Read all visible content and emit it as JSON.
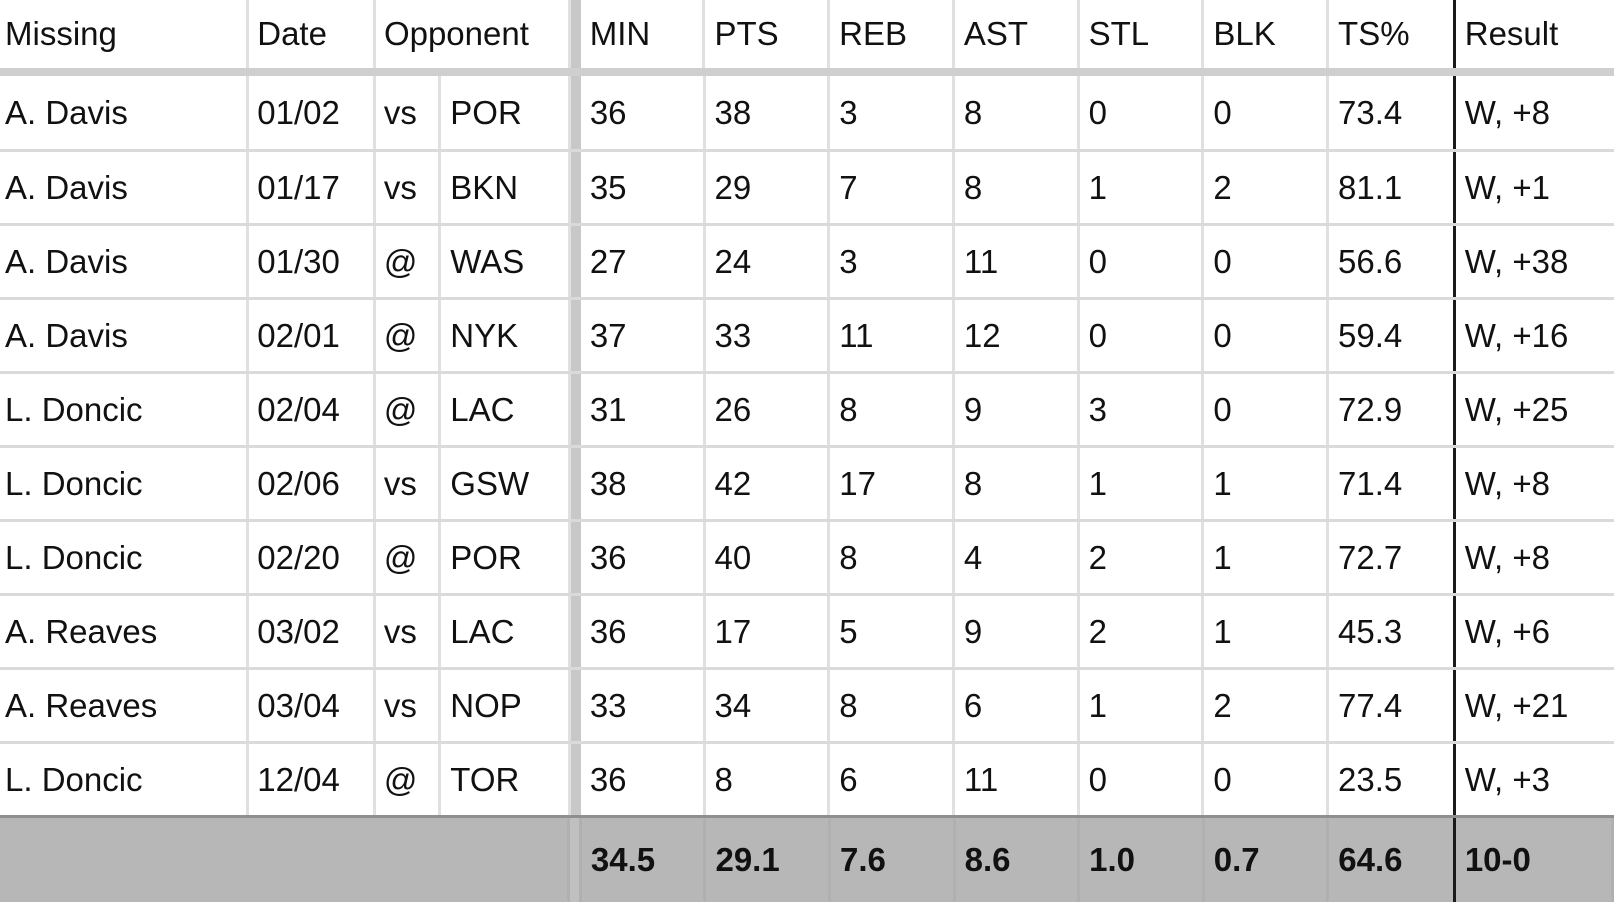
{
  "headers": {
    "missing": "Missing",
    "date": "Date",
    "opponent": "Opponent",
    "min": "MIN",
    "pts": "PTS",
    "reb": "REB",
    "ast": "AST",
    "stl": "STL",
    "blk": "BLK",
    "ts": "TS%",
    "result": "Result"
  },
  "rows": [
    {
      "missing": "A. Davis",
      "date": "01/02",
      "loc": "vs",
      "opp": "POR",
      "min": "36",
      "pts": "38",
      "reb": "3",
      "ast": "8",
      "stl": "0",
      "blk": "0",
      "ts": "73.4",
      "result": "W, +8"
    },
    {
      "missing": "A. Davis",
      "date": "01/17",
      "loc": "vs",
      "opp": "BKN",
      "min": "35",
      "pts": "29",
      "reb": "7",
      "ast": "8",
      "stl": "1",
      "blk": "2",
      "ts": "81.1",
      "result": "W, +1"
    },
    {
      "missing": "A. Davis",
      "date": "01/30",
      "loc": "@",
      "opp": "WAS",
      "min": "27",
      "pts": "24",
      "reb": "3",
      "ast": "11",
      "stl": "0",
      "blk": "0",
      "ts": "56.6",
      "result": "W, +38"
    },
    {
      "missing": "A. Davis",
      "date": "02/01",
      "loc": "@",
      "opp": "NYK",
      "min": "37",
      "pts": "33",
      "reb": "11",
      "ast": "12",
      "stl": "0",
      "blk": "0",
      "ts": "59.4",
      "result": "W, +16"
    },
    {
      "missing": "L. Doncic",
      "date": "02/04",
      "loc": "@",
      "opp": "LAC",
      "min": "31",
      "pts": "26",
      "reb": "8",
      "ast": "9",
      "stl": "3",
      "blk": "0",
      "ts": "72.9",
      "result": "W, +25"
    },
    {
      "missing": "L. Doncic",
      "date": "02/06",
      "loc": "vs",
      "opp": "GSW",
      "min": "38",
      "pts": "42",
      "reb": "17",
      "ast": "8",
      "stl": "1",
      "blk": "1",
      "ts": "71.4",
      "result": "W, +8"
    },
    {
      "missing": "L. Doncic",
      "date": "02/20",
      "loc": "@",
      "opp": "POR",
      "min": "36",
      "pts": "40",
      "reb": "8",
      "ast": "4",
      "stl": "2",
      "blk": "1",
      "ts": "72.7",
      "result": "W, +8"
    },
    {
      "missing": "A. Reaves",
      "date": "03/02",
      "loc": "vs",
      "opp": "LAC",
      "min": "36",
      "pts": "17",
      "reb": "5",
      "ast": "9",
      "stl": "2",
      "blk": "1",
      "ts": "45.3",
      "result": "W, +6"
    },
    {
      "missing": "A. Reaves",
      "date": "03/04",
      "loc": "vs",
      "opp": "NOP",
      "min": "33",
      "pts": "34",
      "reb": "8",
      "ast": "6",
      "stl": "1",
      "blk": "2",
      "ts": "77.4",
      "result": "W, +21"
    },
    {
      "missing": "L. Doncic",
      "date": "12/04",
      "loc": "@",
      "opp": "TOR",
      "min": "36",
      "pts": "8",
      "reb": "6",
      "ast": "11",
      "stl": "0",
      "blk": "0",
      "ts": "23.5",
      "result": "W, +3"
    }
  ],
  "totals": {
    "min": "34.5",
    "pts": "29.1",
    "reb": "7.6",
    "ast": "8.6",
    "stl": "1.0",
    "blk": "0.7",
    "ts": "64.6",
    "result": "10-0"
  },
  "colors": {
    "footer_bg": "#b7b7b7",
    "gridline": "#dadada",
    "separator": "#c8c8c8",
    "divider": "#1a1a1a"
  }
}
